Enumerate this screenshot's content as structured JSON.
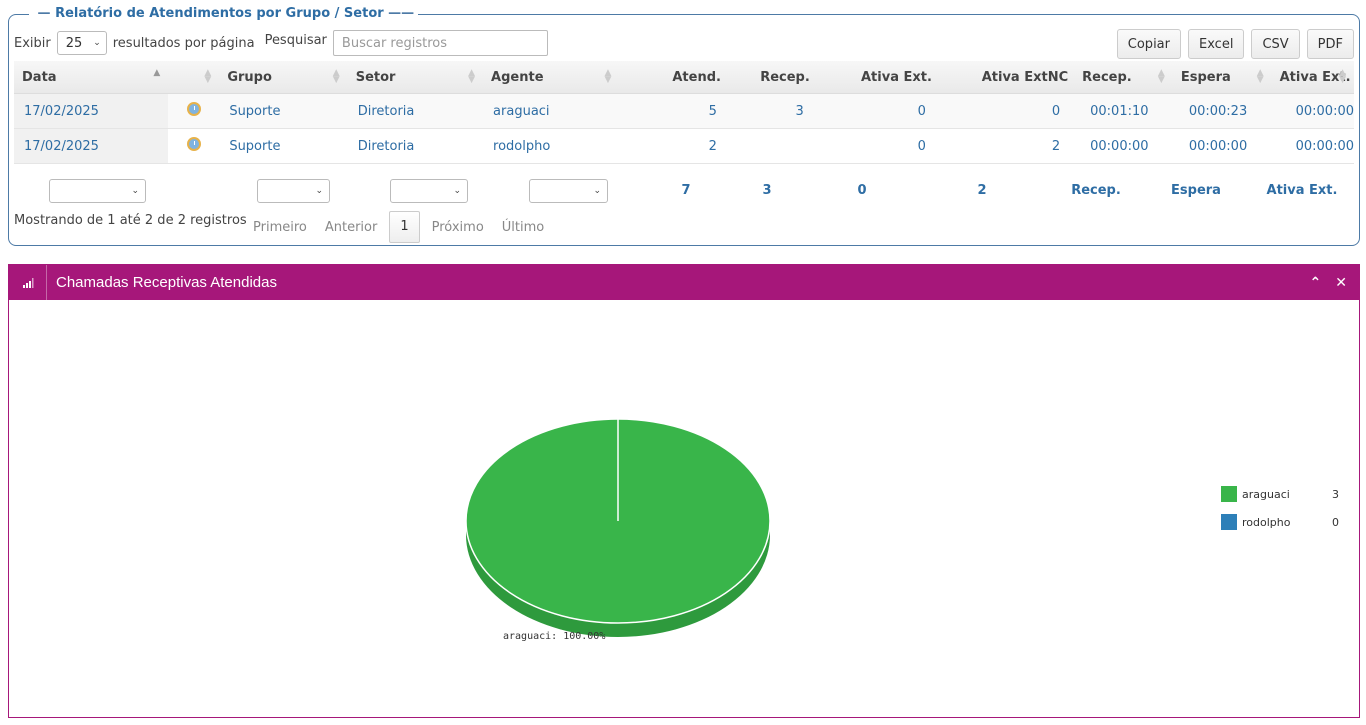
{
  "report": {
    "title": "Relatório de Atendimentos por Grupo / Setor",
    "show_label": "Exibir",
    "page_size": "25",
    "per_page_label": "resultados por página",
    "search_label": "Pesquisar",
    "search_placeholder": "Buscar registros",
    "buttons": [
      "Copiar",
      "Excel",
      "CSV",
      "PDF"
    ],
    "columns": [
      "Data",
      "",
      "Grupo",
      "Setor",
      "Agente",
      "Atend.",
      "Recep.",
      "Ativa Ext.",
      "Ativa ExtNC",
      "Recep.",
      "Espera",
      "Ativa Ext."
    ],
    "rows": [
      {
        "data": "17/02/2025",
        "grupo": "Suporte",
        "setor": "Diretoria",
        "agente": "araguaci",
        "atend": "5",
        "recep": "3",
        "ativa_ext": "0",
        "ativa_extnc": "0",
        "t_recep": "00:01:10",
        "t_espera": "00:00:23",
        "t_ativa_ext": "00:00:00"
      },
      {
        "data": "17/02/2025",
        "grupo": "Suporte",
        "setor": "Diretoria",
        "agente": "rodolpho",
        "atend": "2",
        "recep": "",
        "ativa_ext": "0",
        "ativa_extnc": "2",
        "t_recep": "00:00:00",
        "t_espera": "00:00:00",
        "t_ativa_ext": "00:00:00"
      }
    ],
    "totals": {
      "atend": "7",
      "recep": "3",
      "ativa_ext": "0",
      "ativa_extnc": "2",
      "t_recep": "Recep.",
      "t_espera": "Espera",
      "t_ativa_ext": "Ativa Ext."
    },
    "info": "Mostrando de 1 até 2 de 2 registros",
    "pager": {
      "first": "Primeiro",
      "prev": "Anterior",
      "current": "1",
      "next": "Próximo",
      "last": "Último"
    }
  },
  "widget": {
    "title": "Chamadas Receptivas Atendidas",
    "icons": {
      "header": "bar-chart-icon",
      "collapse": "chevron-up-icon",
      "close": "close-icon"
    }
  },
  "chart_data": {
    "type": "pie",
    "slices": [
      {
        "label": "araguaci",
        "value": 3,
        "color": "#39b54a"
      },
      {
        "label": "rodolpho",
        "value": 0,
        "color": "#2d7fb8"
      }
    ],
    "data_label": "araguaci: 100.00%",
    "legend_position": "right"
  },
  "colors": {
    "accent": "#2e6da4",
    "widget_header": "#a6177a"
  }
}
